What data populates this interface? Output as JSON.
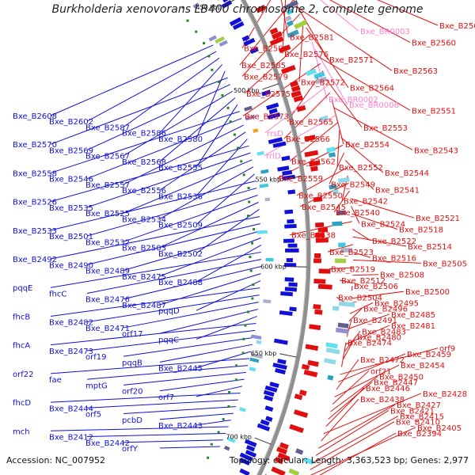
{
  "header": {
    "title": "Burkholderia xenovorans LB400 chromosome 2, complete genome"
  },
  "footer": {
    "accession": "Accession: NC_007952",
    "topology": "Topology: circular; Length: 3,363,523 bp; Genes: 2,977"
  },
  "colors": {
    "forward": "#e01010",
    "reverse": "#1010d8",
    "rna": "#ff80d0",
    "backbone": "#909090",
    "tick": "#228822"
  },
  "ticks": [
    "450 kbp",
    "500 kbp",
    "550 kbp",
    "600 kbp",
    "650 kbp",
    "700 kbp"
  ],
  "right_labels": [
    {
      "t": "Bxe_B2561",
      "c": "fwd"
    },
    {
      "t": "Bxe_BR0003",
      "c": "rna"
    },
    {
      "t": "Bxe_B2581",
      "c": "fwd"
    },
    {
      "t": "Bxe_B2560",
      "c": "fwd"
    },
    {
      "t": "Bxe_B2590",
      "c": "fwd"
    },
    {
      "t": "Bxe_B2576",
      "c": "fwd"
    },
    {
      "t": "Bxe_B2571",
      "c": "fwd"
    },
    {
      "t": "Bxe_B2585",
      "c": "fwd"
    },
    {
      "t": "Bxe_B2563",
      "c": "fwd"
    },
    {
      "t": "Bxe_B2579",
      "c": "fwd"
    },
    {
      "t": "Bxe_B2572",
      "c": "fwd"
    },
    {
      "t": "Bxe_B2564",
      "c": "fwd"
    },
    {
      "t": "Bxe_B2575",
      "c": "fwd"
    },
    {
      "t": "Bxe_BR0002",
      "c": "rna"
    },
    {
      "t": "Bxe_BR0006",
      "c": "rna"
    },
    {
      "t": "Bxe_B2551",
      "c": "fwd"
    },
    {
      "t": "Bxe_B2573",
      "c": "fwd"
    },
    {
      "t": "Bxe_B2565",
      "c": "fwd"
    },
    {
      "t": "Bxe_B2553",
      "c": "fwd"
    },
    {
      "t": "rrsD",
      "c": "rna"
    },
    {
      "t": "Bxe_B2566",
      "c": "fwd"
    },
    {
      "t": "Bxe_B2554",
      "c": "fwd"
    },
    {
      "t": "Bxe_B2543",
      "c": "fwd"
    },
    {
      "t": "rrlD",
      "c": "rna"
    },
    {
      "t": "Bxe_B2562",
      "c": "fwd"
    },
    {
      "t": "Bxe_B2552",
      "c": "fwd"
    },
    {
      "t": "Bxe_B2544",
      "c": "fwd"
    },
    {
      "t": "Bxe_B2559",
      "c": "fwd"
    },
    {
      "t": "Bxe_B2549",
      "c": "fwd"
    },
    {
      "t": "Bxe_B2541",
      "c": "fwd"
    },
    {
      "t": "Bxe_B2550",
      "c": "fwd"
    },
    {
      "t": "Bxe_B2542",
      "c": "fwd"
    },
    {
      "t": "Bxe_B2545",
      "c": "fwd"
    },
    {
      "t": "Bxe_B2540",
      "c": "fwd"
    },
    {
      "t": "Bxe_B2521",
      "c": "fwd"
    },
    {
      "t": "Bxe_B2524",
      "c": "fwd"
    },
    {
      "t": "Bxe_B2518",
      "c": "fwd"
    },
    {
      "t": "Bxe_B2538",
      "c": "fwd"
    },
    {
      "t": "Bxe_B2522",
      "c": "fwd"
    },
    {
      "t": "Bxe_B2514",
      "c": "fwd"
    },
    {
      "t": "Bxe_B2523",
      "c": "fwd"
    },
    {
      "t": "Bxe_B2516",
      "c": "fwd"
    },
    {
      "t": "Bxe_B2505",
      "c": "fwd"
    },
    {
      "t": "Bxe_B2519",
      "c": "fwd"
    },
    {
      "t": "Bxe_B2508",
      "c": "fwd"
    },
    {
      "t": "Bxe_B2512",
      "c": "fwd"
    },
    {
      "t": "Bxe_B2506",
      "c": "fwd"
    },
    {
      "t": "Bxe_B2500",
      "c": "fwd"
    },
    {
      "t": "Bxe_B2504",
      "c": "fwd"
    },
    {
      "t": "Bxe_B2495",
      "c": "fwd"
    },
    {
      "t": "Bxe_B2496",
      "c": "fwd"
    },
    {
      "t": "Bxe_B2485",
      "c": "fwd"
    },
    {
      "t": "Bxe_B2491",
      "c": "fwd"
    },
    {
      "t": "Bxe_B2481",
      "c": "fwd"
    },
    {
      "t": "Bxe_B2483",
      "c": "fwd"
    },
    {
      "t": "Bxe_B2480",
      "c": "fwd"
    },
    {
      "t": "Bxe_B2474",
      "c": "fwd"
    },
    {
      "t": "orf9",
      "c": "fwd"
    },
    {
      "t": "Bxe_B2459",
      "c": "fwd"
    },
    {
      "t": "Bxe_B2472",
      "c": "fwd"
    },
    {
      "t": "Bxe_B2454",
      "c": "fwd"
    },
    {
      "t": "orf21",
      "c": "fwd"
    },
    {
      "t": "Bxe_B2450",
      "c": "fwd"
    },
    {
      "t": "Bxe_B2447",
      "c": "fwd"
    },
    {
      "t": "Bxe_B2446",
      "c": "fwd"
    },
    {
      "t": "Bxe_B2428",
      "c": "fwd"
    },
    {
      "t": "Bxe_B2438",
      "c": "fwd"
    },
    {
      "t": "Bxe_B2427",
      "c": "fwd"
    },
    {
      "t": "Bxe_B2421",
      "c": "fwd"
    },
    {
      "t": "Bxe_B2415",
      "c": "fwd"
    },
    {
      "t": "Bxe_B2410",
      "c": "fwd"
    },
    {
      "t": "Bxe_B2405",
      "c": "fwd"
    },
    {
      "t": "Bxe_B2394",
      "c": "fwd"
    }
  ],
  "left_labels": [
    {
      "t": "Bxe_B2608"
    },
    {
      "t": "Bxe_B2602"
    },
    {
      "t": "Bxe_B2587"
    },
    {
      "t": "Bxe_B2586"
    },
    {
      "t": "Bxe_B2580"
    },
    {
      "t": "Bxe_B2570"
    },
    {
      "t": "Bxe_B2569"
    },
    {
      "t": "Bxe_B2567"
    },
    {
      "t": "Bxe_B2568"
    },
    {
      "t": "Bxe_B2555"
    },
    {
      "t": "Bxe_B2558"
    },
    {
      "t": "Bxe_B2546"
    },
    {
      "t": "Bxe_B2557"
    },
    {
      "t": "Bxe_B2556"
    },
    {
      "t": "Bxe_B2536"
    },
    {
      "t": "Bxe_B2526"
    },
    {
      "t": "Bxe_B2535"
    },
    {
      "t": "Bxe_B2525"
    },
    {
      "t": "Bxe_B2534"
    },
    {
      "t": "Bxe_B2509"
    },
    {
      "t": "Bxe_B2533"
    },
    {
      "t": "Bxe_B2501"
    },
    {
      "t": "Bxe_B2532"
    },
    {
      "t": "Bxe_B2503"
    },
    {
      "t": "Bxe_B2502"
    },
    {
      "t": "Bxe_B2492"
    },
    {
      "t": "Bxe_B2490"
    },
    {
      "t": "Bxe_B2489"
    },
    {
      "t": "Bxe_B2475"
    },
    {
      "t": "Bxe_B2488"
    },
    {
      "t": "pqqE"
    },
    {
      "t": "fhcC"
    },
    {
      "t": "Bxe_B2476"
    },
    {
      "t": "Bxe_B2487"
    },
    {
      "t": "pqqD"
    },
    {
      "t": "fhcB"
    },
    {
      "t": "Bxe_B2482"
    },
    {
      "t": "Bxe_B2471"
    },
    {
      "t": "orf17"
    },
    {
      "t": "pqqC"
    },
    {
      "t": "fhcA"
    },
    {
      "t": "Bxe_B2473"
    },
    {
      "t": "orf19"
    },
    {
      "t": "pqqB"
    },
    {
      "t": "Bxe_B2445"
    },
    {
      "t": "orf22"
    },
    {
      "t": "fae"
    },
    {
      "t": "mptG"
    },
    {
      "t": "orf20"
    },
    {
      "t": "orf7"
    },
    {
      "t": "fhcD"
    },
    {
      "t": "Bxe_B2444"
    },
    {
      "t": "orf5"
    },
    {
      "t": "pcbD"
    },
    {
      "t": "Bxe_B2443"
    },
    {
      "t": "mch"
    },
    {
      "t": "Bxe_B2412"
    },
    {
      "t": "Bxe_B2442"
    },
    {
      "t": "orfY"
    }
  ]
}
